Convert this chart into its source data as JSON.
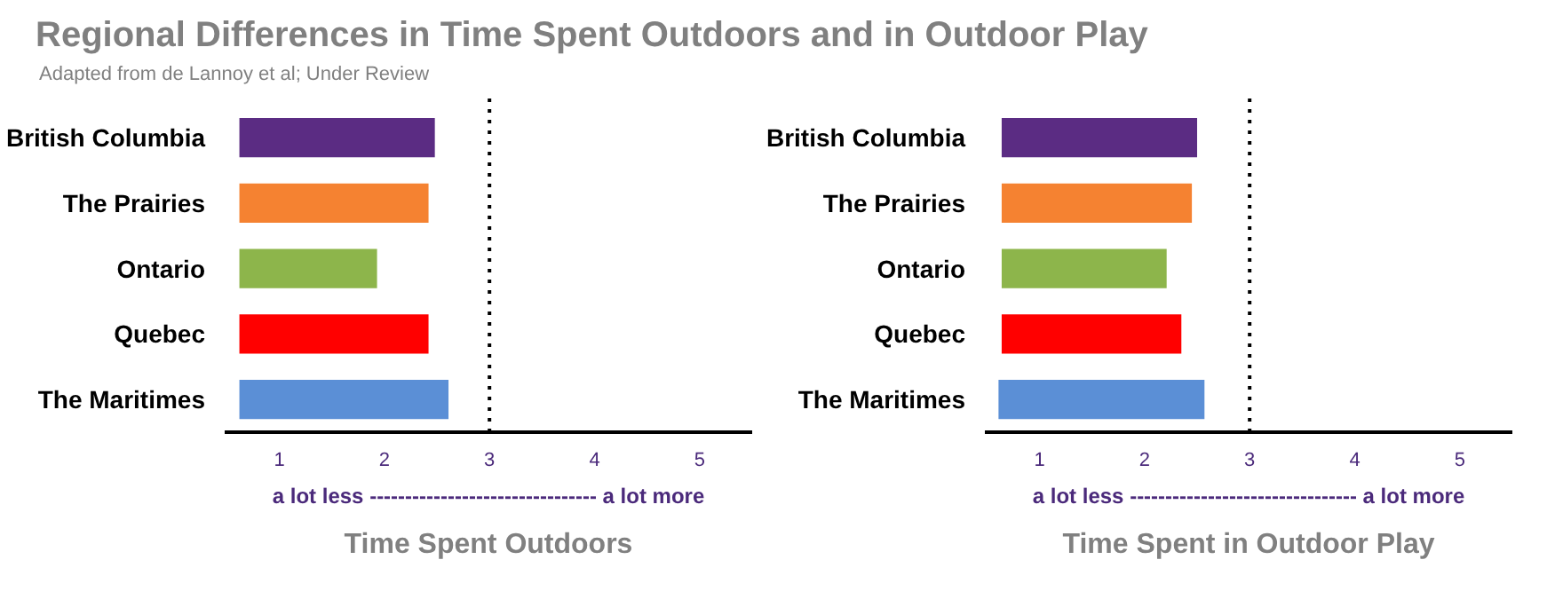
{
  "chart_data": [
    {
      "type": "bar",
      "orientation": "horizontal",
      "title": "Regional Differences in Time Spent Outdoors and in Outdoor Play",
      "subtitle": "Adapted from de Lannoy et al; Under Review",
      "categories": [
        "British Columbia",
        "The Prairies",
        "Ontario",
        "Quebec",
        "The Maritimes"
      ],
      "base": [
        0.62,
        0.62,
        0.62,
        0.62,
        0.62
      ],
      "values": [
        1.86,
        1.8,
        1.31,
        1.8,
        1.99
      ],
      "colors": [
        "#5b2c83",
        "#f58231",
        "#8db54b",
        "#ff0000",
        "#5b8fd6"
      ],
      "xlim": [
        0.48,
        5.5
      ],
      "xticks": [
        1,
        2,
        3,
        4,
        5
      ],
      "xlabel": "Time Spent Outdoors",
      "annotations": [
        "a lot less -------------------------------- a lot more"
      ],
      "ref_lines": [
        {
          "axis": "x",
          "value": 3,
          "label": null,
          "color": "#000000",
          "line_style": "dotted"
        }
      ],
      "grid": false
    },
    {
      "type": "bar",
      "orientation": "horizontal",
      "categories": [
        "British Columbia",
        "The Prairies",
        "Ontario",
        "Quebec",
        "The Maritimes"
      ],
      "base": [
        0.64,
        0.64,
        0.64,
        0.64,
        0.61
      ],
      "values": [
        1.86,
        1.81,
        1.57,
        1.71,
        1.96
      ],
      "colors": [
        "#5b2c83",
        "#f58231",
        "#8db54b",
        "#ff0000",
        "#5b8fd6"
      ],
      "xlim": [
        0.48,
        5.5
      ],
      "xticks": [
        1,
        2,
        3,
        4,
        5
      ],
      "xlabel": "Time Spent in Outdoor Play",
      "annotations": [
        "a lot less -------------------------------- a lot more"
      ],
      "ref_lines": [
        {
          "axis": "x",
          "value": 3,
          "label": null,
          "color": "#000000",
          "line_style": "dotted"
        }
      ],
      "grid": false
    }
  ]
}
